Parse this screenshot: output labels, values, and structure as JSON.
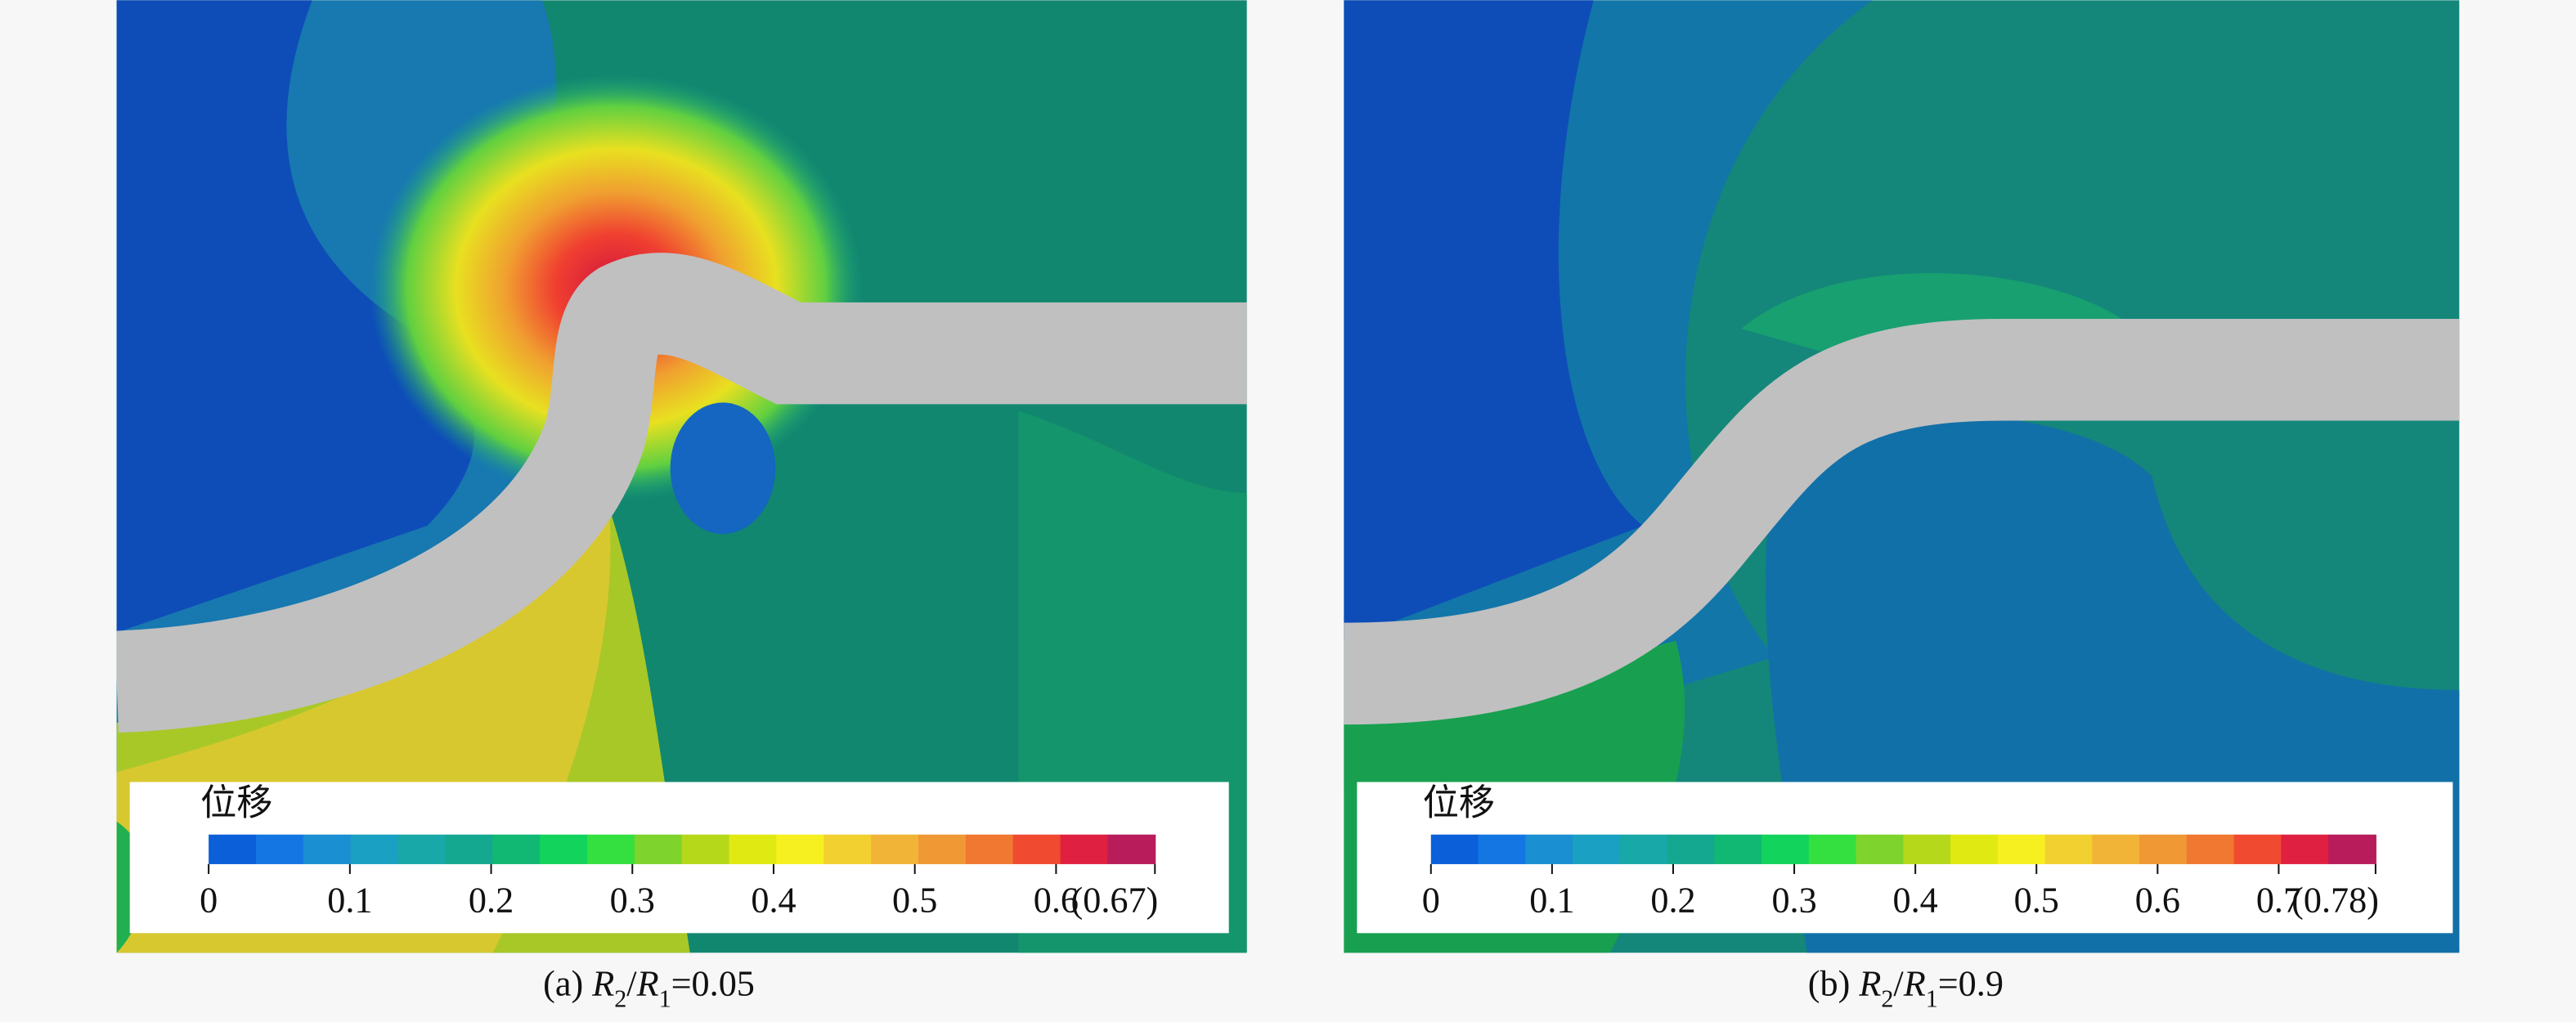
{
  "chart_data": [
    {
      "type": "contour",
      "colorbar_title": "位移",
      "caption": [
        "(a) ",
        "R",
        "2",
        "/",
        "R",
        "1",
        "=0.05"
      ],
      "clim": [
        0,
        0.67
      ],
      "cticks": [
        0,
        0.1,
        0.2,
        0.3,
        0.4,
        0.5,
        0.6,
        {
          "value": 0.67,
          "label": "(0.67)"
        }
      ],
      "colors": [
        "#0b5fd8",
        "#1476e2",
        "#1a8fd2",
        "#1aa0c2",
        "#18a8a8",
        "#14a890",
        "#10b874",
        "#12d45c",
        "#34e040",
        "#7ed42c",
        "#b6d81a",
        "#e0ea12",
        "#f6f020",
        "#f2d030",
        "#f2b436",
        "#f09834",
        "#f07830",
        "#f04a30",
        "#e02040",
        "#b81c5a"
      ]
    },
    {
      "type": "contour",
      "colorbar_title": "位移",
      "caption": [
        "(b) ",
        "R",
        "2",
        "/",
        "R",
        "1",
        "=0.9"
      ],
      "clim": [
        0,
        0.78
      ],
      "cticks": [
        0,
        0.1,
        0.2,
        0.3,
        0.4,
        0.5,
        0.6,
        0.7,
        {
          "value": 0.78,
          "label": "(0.78)"
        }
      ],
      "colors": [
        "#0b5fd8",
        "#1476e2",
        "#1a8fd2",
        "#1aa0c2",
        "#18a8a8",
        "#14a890",
        "#10b874",
        "#12d45c",
        "#34e040",
        "#7ed42c",
        "#b6d81a",
        "#e0ea12",
        "#f6f020",
        "#f2d030",
        "#f2b436",
        "#f09834",
        "#f07830",
        "#f04a30",
        "#e02040",
        "#b81c5a"
      ]
    }
  ]
}
